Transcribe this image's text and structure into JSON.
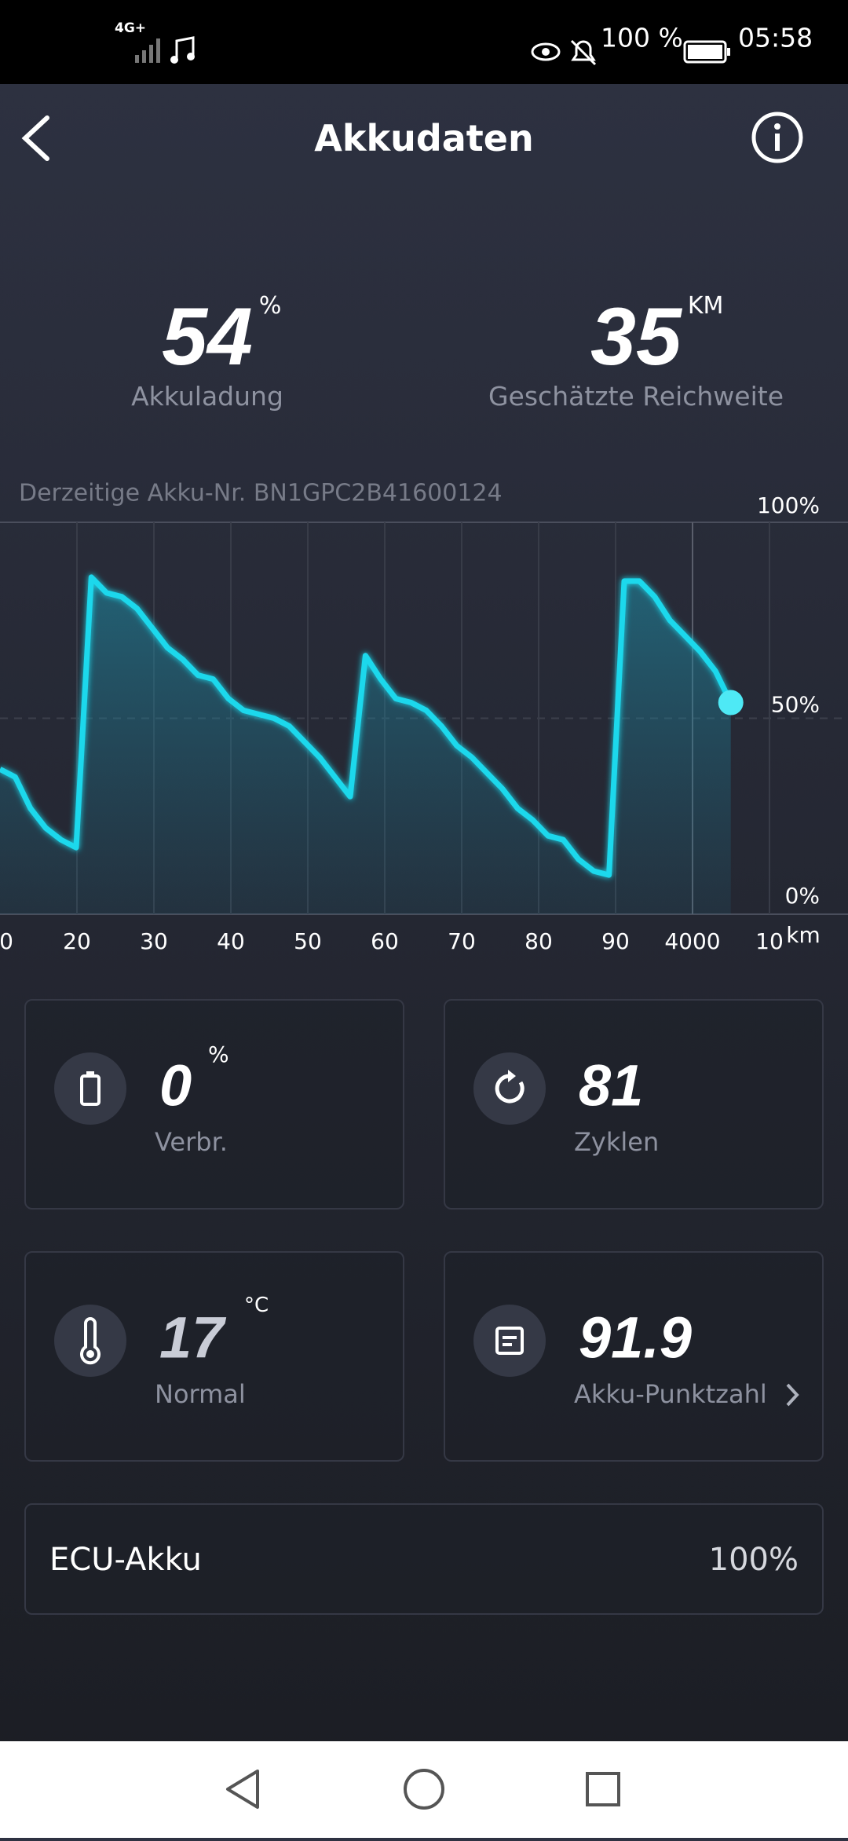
{
  "status_bar": {
    "network": "4G+",
    "battery": "100 %",
    "time": "05:58"
  },
  "header": {
    "title": "Akkudaten"
  },
  "summary": {
    "charge": {
      "value": 54,
      "unit": "%",
      "label": "Akkuladung"
    },
    "range": {
      "value": 35,
      "unit": "KM",
      "label": "Geschätzte Reichweite"
    }
  },
  "battery_id": "Derzeitige Akku-Nr. BN1GPC2B41600124",
  "chart_data": {
    "type": "area",
    "x_tick_labels": [
      "0",
      "20",
      "30",
      "40",
      "50",
      "60",
      "70",
      "80",
      "90",
      "4000",
      "10"
    ],
    "x_unit": "km",
    "values": [
      37,
      35,
      27,
      22,
      19,
      17,
      86,
      82,
      81,
      78,
      73,
      68,
      65,
      61,
      60,
      55,
      52,
      51,
      50,
      48,
      44,
      40,
      35,
      30,
      66,
      60,
      55,
      54,
      52,
      48,
      43,
      40,
      36,
      32,
      27,
      24,
      20,
      19,
      14,
      11,
      10,
      85,
      85,
      81,
      75,
      71,
      67,
      62,
      54
    ],
    "color": "#1fd8ec",
    "ylim": [
      0,
      100
    ],
    "yticks": [
      {
        "value": 0,
        "label": "0%"
      },
      {
        "value": 50,
        "label": "50%"
      },
      {
        "value": 100,
        "label": "100%"
      }
    ],
    "grid": true
  },
  "cards": [
    {
      "value": 0,
      "unit": "%",
      "label": "Verbr."
    },
    {
      "value": 81,
      "label": "Zyklen"
    },
    {
      "value": 17,
      "unit": "°C",
      "label": "Normal"
    },
    {
      "value": 91.9,
      "label": "Akku-Punktzahl"
    }
  ],
  "ecu": {
    "label": "ECU-Akku",
    "value": "100%"
  }
}
